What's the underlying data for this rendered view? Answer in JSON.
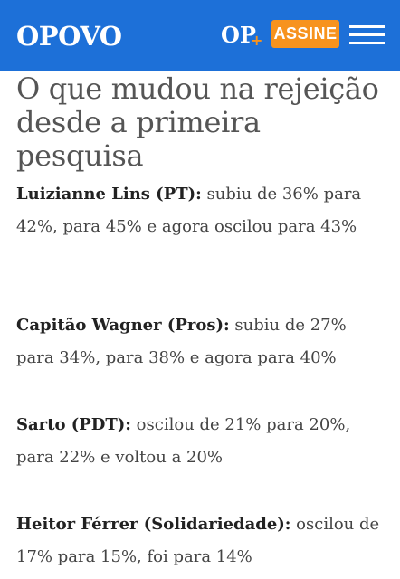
{
  "header": {
    "logo": "OPOVO",
    "op_logo": "OP",
    "op_plus": "+",
    "subscribe_label": "ASSINE"
  },
  "article": {
    "title": "O que mudou na rejeição desde a primeira pesquisa",
    "items": [
      {
        "name": "Luizianne Lins (PT):",
        "text": " subiu de 36% para 42%, para 45% e agora oscilou para 43%"
      },
      {
        "name": "Capitão Wagner (Pros):",
        "text": " subiu de 27% para 34%, para 38% e agora para 40%"
      },
      {
        "name": "Sarto (PDT):",
        "text": " oscilou de 21% para 20%, para 22% e voltou a 20%"
      },
      {
        "name": "Heitor Férrer (Solidariedade):",
        "text": " oscilou de 17% para 15%, foi para 14%"
      }
    ]
  }
}
